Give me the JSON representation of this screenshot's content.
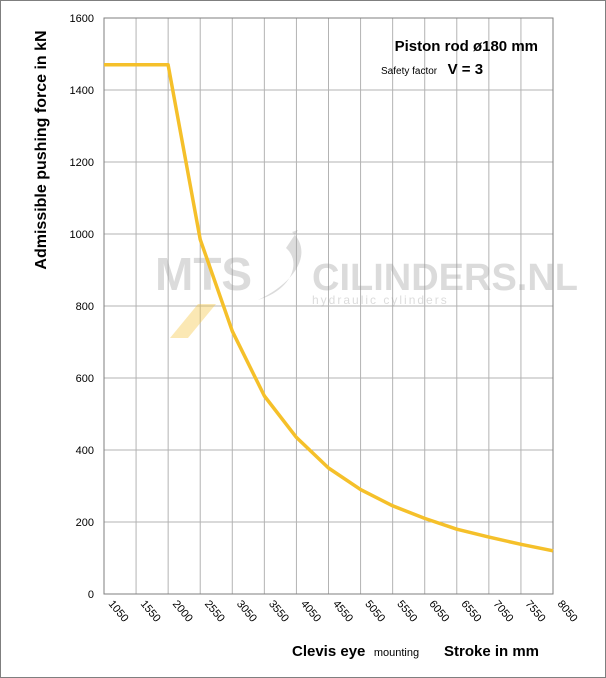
{
  "chart_data": {
    "type": "line",
    "title": "Piston rod ø180 mm",
    "subtitle_prefix": "Safety factor",
    "subtitle_value": "V = 3",
    "ylabel": "Admissible  pushing  force in kN",
    "xlabel_main": "Clevis eye",
    "xlabel_small": "mounting",
    "xlabel_right": "Stroke in mm",
    "ylim": [
      0,
      1600
    ],
    "yticks": [
      0,
      200,
      400,
      600,
      800,
      1000,
      1200,
      1400,
      1600
    ],
    "xtick_labels": [
      "1050",
      "1550",
      "2000",
      "2550",
      "3050",
      "3550",
      "4050",
      "4550",
      "5050",
      "5550",
      "6050",
      "6550",
      "7050",
      "7550",
      "8050"
    ],
    "grid": true,
    "series": [
      {
        "color": "#f5c02a",
        "points": [
          {
            "x": "1050",
            "y": 1470
          },
          {
            "x": "1550",
            "y": 1470
          },
          {
            "x": "2000",
            "y": 1470
          },
          {
            "x": "2550",
            "y": 985
          },
          {
            "x": "3050",
            "y": 730
          },
          {
            "x": "3550",
            "y": 550
          },
          {
            "x": "4050",
            "y": 435
          },
          {
            "x": "4550",
            "y": 350
          },
          {
            "x": "5050",
            "y": 290
          },
          {
            "x": "5550",
            "y": 245
          },
          {
            "x": "6050",
            "y": 210
          },
          {
            "x": "6550",
            "y": 180
          },
          {
            "x": "7050",
            "y": 158
          },
          {
            "x": "7550",
            "y": 138
          },
          {
            "x": "8050",
            "y": 120
          }
        ]
      }
    ]
  },
  "watermark": {
    "brand_left": "MTS",
    "brand_right": "CILINDERS.NL",
    "tagline": "hydraulic cylinders"
  }
}
